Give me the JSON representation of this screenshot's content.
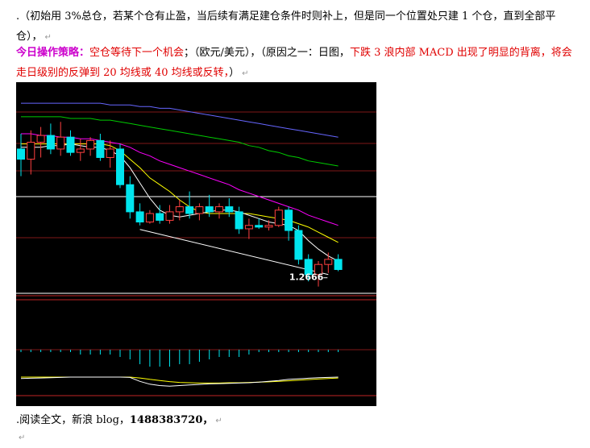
{
  "paragraph1": {
    "lead": ".",
    "text": "（初始用 3%总仓，若某个仓有止盈，当后续有满足建仓条件时则补上，但是同一个位置处只建 1 个仓，直到全部平仓），"
  },
  "paragraph2": {
    "label": "今日操作策略",
    "colon": "：",
    "strategy": "空仓等待下一个机会",
    "pair": "；（欧元/美元），（原因之一：日图，",
    "reason": "下跌 3 浪内部 MACD 出现了明显的背离，将会走日级别的反弹到 20 均线或 40 均线或反转，",
    "tail": "）"
  },
  "paragraph3": {
    "text": ".阅读全文，新浪 blog，",
    "number": "1488383720",
    "tail": "，"
  },
  "paragraph_mark": "↵",
  "colors": {
    "label_purple": "#cc00cc",
    "text_red": "#e00000",
    "candle_up": "#ff4040",
    "candle_down": "#00e5ee",
    "ma5": "#ffffff",
    "ma10": "#ffff00",
    "ma20": "#ff00ff",
    "ma40": "#00cc00",
    "ma60": "#6666ff"
  },
  "chart_data": {
    "type": "candlestick",
    "annotation": "1.2666",
    "candles": [
      {
        "o": 51,
        "h": 60,
        "l": 35,
        "c": 45
      },
      {
        "o": 45,
        "h": 62,
        "l": 36,
        "c": 55
      },
      {
        "o": 55,
        "h": 64,
        "l": 46,
        "c": 59
      },
      {
        "o": 59,
        "h": 66,
        "l": 48,
        "c": 51
      },
      {
        "o": 51,
        "h": 67,
        "l": 47,
        "c": 58
      },
      {
        "o": 58,
        "h": 62,
        "l": 47,
        "c": 49
      },
      {
        "o": 49,
        "h": 57,
        "l": 44,
        "c": 51
      },
      {
        "o": 51,
        "h": 58,
        "l": 47,
        "c": 56
      },
      {
        "o": 56,
        "h": 60,
        "l": 44,
        "c": 46
      },
      {
        "o": 46,
        "h": 56,
        "l": 40,
        "c": 51
      },
      {
        "o": 51,
        "h": 54,
        "l": 28,
        "c": 30
      },
      {
        "o": 30,
        "h": 35,
        "l": 10,
        "c": 14
      },
      {
        "o": 14,
        "h": 19,
        "l": 6,
        "c": 8
      },
      {
        "o": 8,
        "h": 15,
        "l": 7,
        "c": 13
      },
      {
        "o": 13,
        "h": 18,
        "l": 7,
        "c": 9
      },
      {
        "o": 9,
        "h": 18,
        "l": 7,
        "c": 14
      },
      {
        "o": 14,
        "h": 21,
        "l": 9,
        "c": 17
      },
      {
        "o": 17,
        "h": 26,
        "l": 10,
        "c": 13
      },
      {
        "o": 13,
        "h": 19,
        "l": 9,
        "c": 17
      },
      {
        "o": 17,
        "h": 24,
        "l": 11,
        "c": 14
      },
      {
        "o": 14,
        "h": 19,
        "l": 10,
        "c": 17
      },
      {
        "o": 17,
        "h": 22,
        "l": 11,
        "c": 14
      },
      {
        "o": 14,
        "h": 17,
        "l": 1,
        "c": 4
      },
      {
        "o": 4,
        "h": 10,
        "l": -2,
        "c": 6
      },
      {
        "o": 6,
        "h": 10,
        "l": 4,
        "c": 5
      },
      {
        "o": 5,
        "h": 9,
        "l": 3,
        "c": 6
      },
      {
        "o": 6,
        "h": 17,
        "l": 5,
        "c": 15
      },
      {
        "o": 15,
        "h": 17,
        "l": -3,
        "c": 3
      },
      {
        "o": 3,
        "h": 6,
        "l": -17,
        "c": -14
      },
      {
        "o": -14,
        "h": -11,
        "l": -27,
        "c": -23
      },
      {
        "o": -23,
        "h": -15,
        "l": -30,
        "c": -17
      },
      {
        "o": -17,
        "h": -10,
        "l": -22,
        "c": -14
      },
      {
        "o": -14,
        "h": -11,
        "l": -21,
        "c": -20
      }
    ],
    "ma5": [
      52,
      52,
      52,
      53,
      53,
      54,
      53,
      52,
      52,
      50,
      47,
      40,
      31,
      22,
      15,
      12,
      11,
      12,
      13,
      14,
      15,
      15,
      14,
      12,
      10,
      8,
      7,
      6,
      3,
      -3,
      -8,
      -12,
      -15
    ],
    "ma10": [
      54,
      54,
      54,
      54,
      54,
      54,
      54,
      54,
      54,
      53,
      50,
      45,
      40,
      34,
      30,
      26,
      21,
      17,
      14,
      13,
      13,
      13,
      13,
      13,
      12,
      11,
      10,
      9,
      7,
      5,
      2,
      -1,
      -4
    ],
    "ma20": [
      60,
      60,
      59,
      59,
      58,
      58,
      57,
      57,
      56,
      55,
      54,
      52,
      49,
      47,
      44,
      42,
      40,
      38,
      36,
      34,
      32,
      30,
      27,
      25,
      23,
      21,
      19,
      17,
      15,
      12,
      10,
      8,
      6
    ],
    "ma40": [
      70,
      70,
      70,
      70,
      70,
      69,
      69,
      69,
      68,
      68,
      67,
      66,
      65,
      64,
      63,
      62,
      61,
      60,
      59,
      58,
      57,
      56,
      55,
      53,
      52,
      50,
      49,
      47,
      46,
      44,
      43,
      42,
      41
    ],
    "ma60": [
      78,
      78,
      78,
      78,
      78,
      78,
      78,
      78,
      78,
      77,
      77,
      77,
      76,
      76,
      75,
      75,
      74,
      73,
      72,
      71,
      70,
      69,
      68,
      67,
      66,
      65,
      64,
      63,
      62,
      61,
      60,
      59,
      58
    ],
    "hist": [
      -1,
      -1,
      -1,
      -1,
      -1,
      -1,
      -2,
      -2,
      -2,
      -2,
      -3,
      -4,
      -6,
      -7,
      -7,
      -7,
      -6,
      -6,
      -5,
      -4,
      -3,
      -3,
      -3,
      -2,
      -1,
      -1,
      -1,
      -1,
      -1,
      -1,
      -1,
      -1,
      -1
    ],
    "macd": [
      -0.5,
      -0.4,
      -0.3,
      -0.2,
      -0.1,
      0,
      0,
      0,
      0,
      0,
      0,
      -0.1,
      -1.5,
      -2.5,
      -3,
      -3.2,
      -3,
      -2.8,
      -2.6,
      -2.4,
      -2.3,
      -2.2,
      -2.1,
      -2,
      -1.8,
      -1.5,
      -1.2,
      -0.8,
      -0.6,
      -0.4,
      -0.2,
      -0.1,
      0
    ],
    "signal": [
      0,
      0,
      0,
      0,
      0,
      0,
      0,
      0,
      0,
      0,
      0,
      0,
      -0.3,
      -0.8,
      -1.2,
      -1.6,
      -1.9,
      -2,
      -2.1,
      -2.1,
      -2.1,
      -2,
      -2,
      -1.9,
      -1.8,
      -1.7,
      -1.5,
      -1.3,
      -1.1,
      -0.9,
      -0.7,
      -0.5,
      -0.3
    ]
  }
}
